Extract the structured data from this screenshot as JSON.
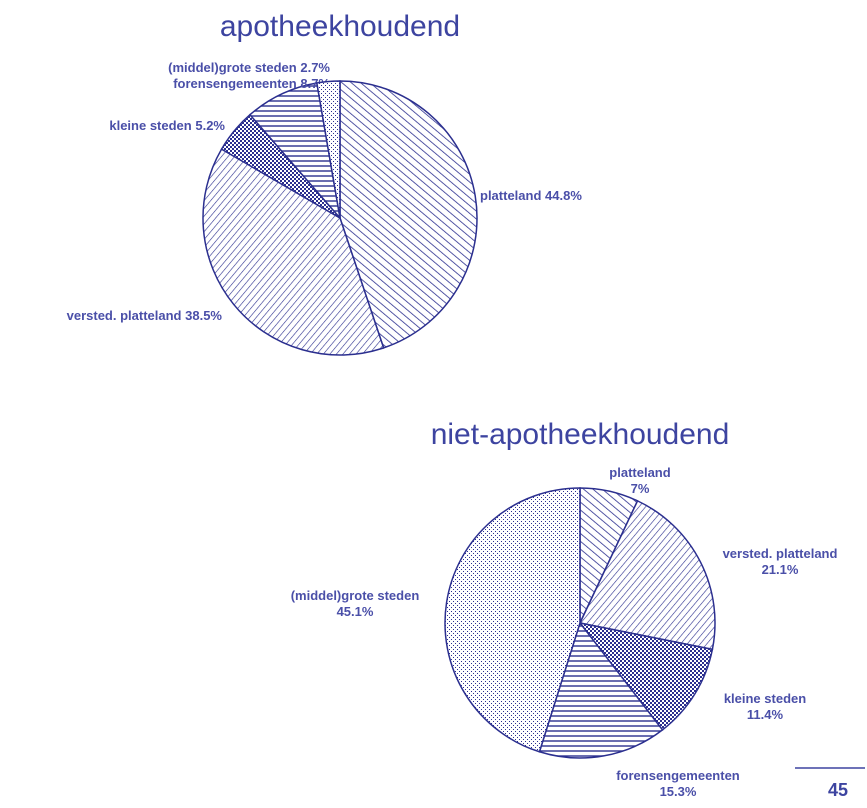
{
  "chart_data": [
    {
      "type": "pie",
      "title": "apotheekhoudend",
      "color": "#2b2f8f",
      "categories": [
        "platteland",
        "versted. platteland",
        "kleine steden",
        "forensengemeenten",
        "(middel)grote steden"
      ],
      "values": [
        44.8,
        38.5,
        5.2,
        8.7,
        2.7
      ],
      "value_labels": [
        "44.8%",
        "38.5%",
        "5.2%",
        "8.7%",
        "2.7%"
      ]
    },
    {
      "type": "pie",
      "title": "niet-apotheekhoudend",
      "color": "#2b2f8f",
      "categories": [
        "platteland",
        "versted. platteland",
        "kleine steden",
        "forensengemeenten",
        "(middel)grote steden"
      ],
      "values": [
        7,
        21.1,
        11.4,
        15.3,
        45.1
      ],
      "value_labels": [
        "7%",
        "21.1%",
        "11.4%",
        "15.3%",
        "45.1%"
      ]
    }
  ],
  "page_number": "45"
}
